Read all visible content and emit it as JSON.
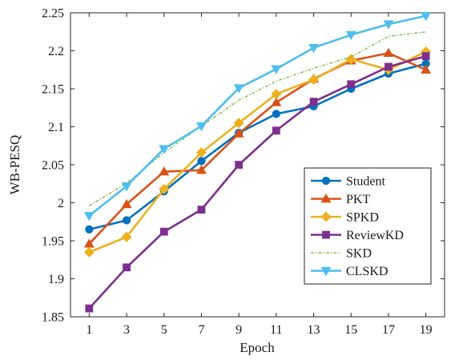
{
  "chart_data": {
    "type": "line",
    "title": "",
    "xlabel": "Epoch",
    "ylabel": "WB-PESQ",
    "x": [
      1,
      3,
      5,
      7,
      9,
      11,
      13,
      15,
      17,
      19
    ],
    "xlim": [
      0,
      20
    ],
    "ylim": [
      1.85,
      2.25
    ],
    "x_ticks": [
      "1",
      "3",
      "5",
      "7",
      "9",
      "11",
      "13",
      "15",
      "17",
      "19"
    ],
    "y_ticks": [
      "1.85",
      "1.9",
      "1.95",
      "2",
      "2.05",
      "2.1",
      "2.15",
      "2.2",
      "2.25"
    ],
    "legend_position": "bottom-right",
    "series": [
      {
        "name": "Student",
        "color": "#0072BD",
        "marker": "circle",
        "dash": "",
        "values": [
          1.965,
          1.977,
          2.015,
          2.055,
          2.092,
          2.117,
          2.127,
          2.15,
          2.17,
          2.183
        ]
      },
      {
        "name": "PKT",
        "color": "#D95319",
        "marker": "triangle",
        "dash": "",
        "values": [
          1.946,
          1.998,
          2.041,
          2.043,
          2.091,
          2.132,
          2.163,
          2.187,
          2.197,
          2.175
        ]
      },
      {
        "name": "SPKD",
        "color": "#EDB120",
        "marker": "diamond",
        "dash": "",
        "values": [
          1.935,
          1.955,
          2.018,
          2.066,
          2.105,
          2.143,
          2.162,
          2.189,
          2.175,
          2.199
        ]
      },
      {
        "name": "ReviewKD",
        "color": "#7E2F8E",
        "marker": "square",
        "dash": "",
        "values": [
          1.861,
          1.915,
          1.962,
          1.991,
          2.05,
          2.095,
          2.133,
          2.156,
          2.179,
          2.193
        ]
      },
      {
        "name": "SKD",
        "color": "#77AC30",
        "marker": "none",
        "dash": "4 2 1.5 2",
        "values": [
          1.996,
          2.026,
          2.066,
          2.101,
          2.135,
          2.16,
          2.177,
          2.192,
          2.219,
          2.225
        ]
      },
      {
        "name": "CLSKD",
        "color": "#4DBEEE",
        "marker": "triangle-down",
        "dash": "",
        "values": [
          1.983,
          2.022,
          2.071,
          2.101,
          2.151,
          2.176,
          2.204,
          2.221,
          2.235,
          2.246
        ]
      }
    ]
  }
}
